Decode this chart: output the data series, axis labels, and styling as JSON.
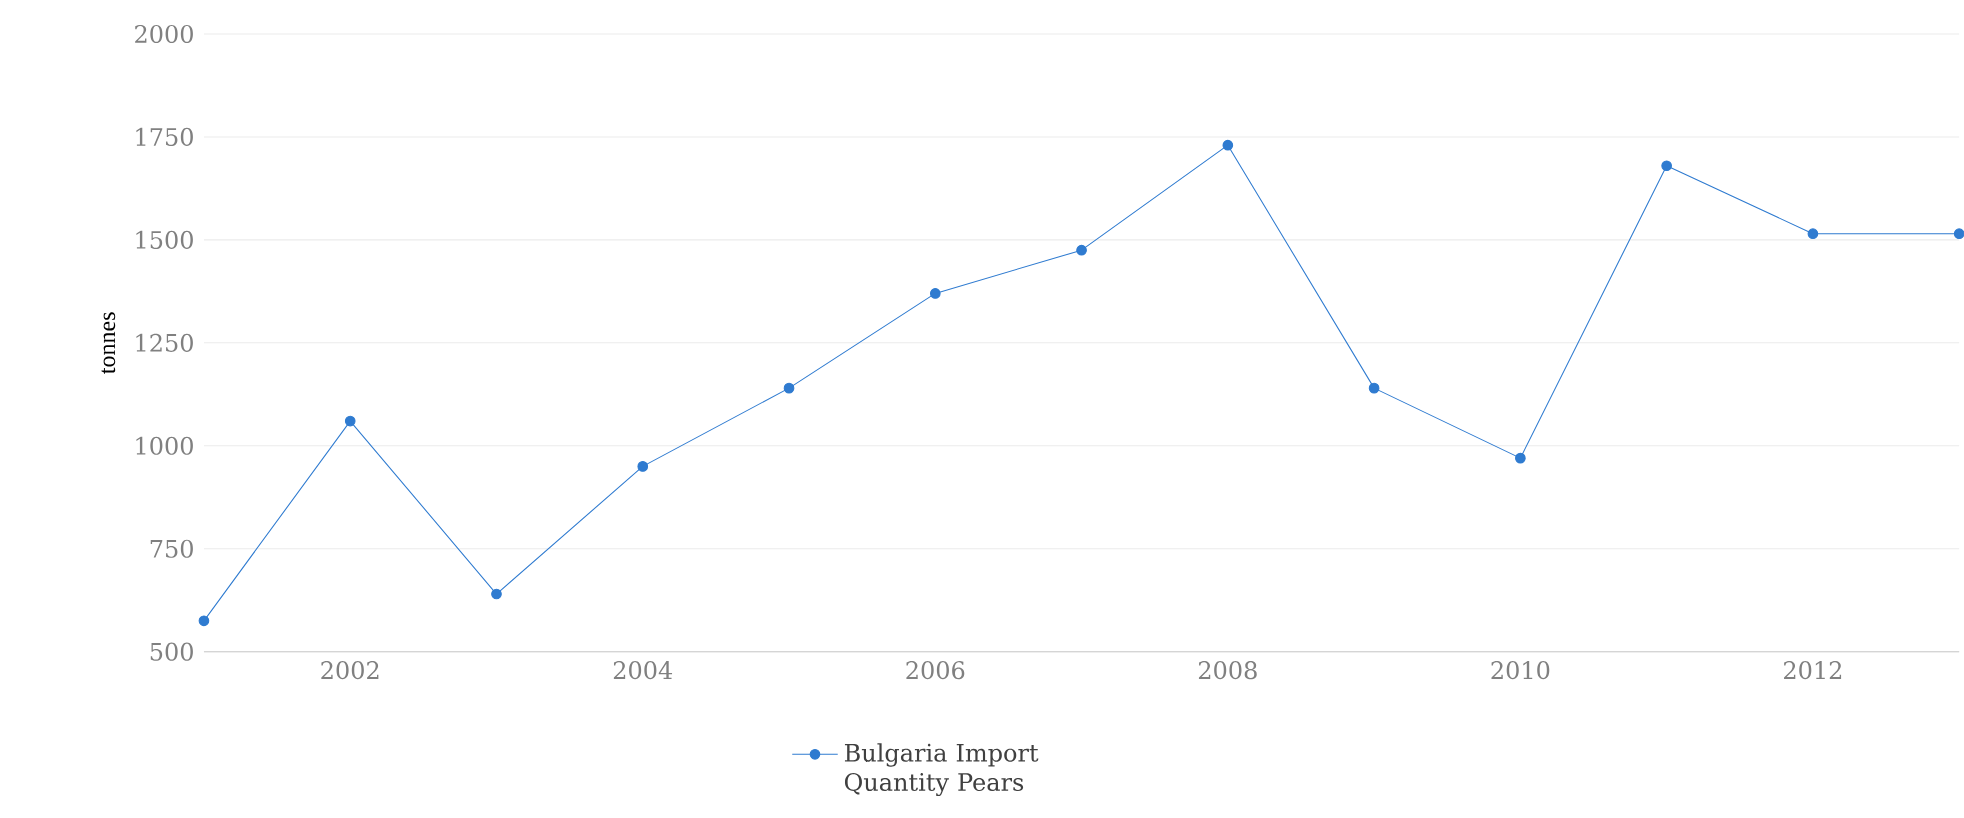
{
  "chart_data": {
    "type": "line",
    "ylabel": "tonnes",
    "x": [
      2001,
      2002,
      2003,
      2004,
      2005,
      2006,
      2007,
      2008,
      2009,
      2010,
      2011,
      2012,
      2013
    ],
    "series": [
      {
        "name": "Bulgaria Import Quantity Pears",
        "color": "#2f7bd0",
        "values": [
          575,
          1060,
          640,
          950,
          1140,
          1370,
          1475,
          1730,
          1140,
          970,
          1680,
          1515,
          1515
        ]
      }
    ],
    "xlim": [
      2001,
      2013
    ],
    "xticks": [
      2002,
      2004,
      2006,
      2008,
      2010,
      2012
    ],
    "ylim": [
      500,
      2000
    ],
    "yticks": [
      500,
      750,
      1000,
      1250,
      1500,
      1750,
      2000
    ],
    "grid": "y",
    "legend": "bottom",
    "marker": "circle",
    "line_style": "solid"
  }
}
